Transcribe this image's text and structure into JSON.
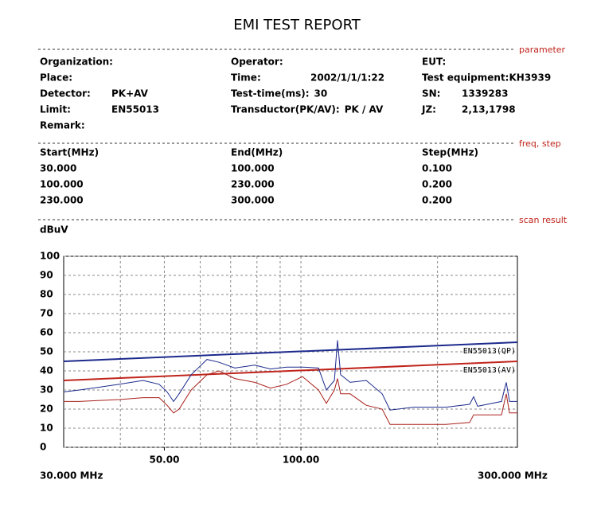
{
  "header": {
    "title": "EMI TEST REPORT"
  },
  "sections": [
    "parameter",
    "freq, step",
    "scan result"
  ],
  "parameters": [
    [
      {
        "label": "Organization:"
      },
      {
        "label": "Operator:"
      },
      {
        "label": "EUT:"
      }
    ],
    [
      {
        "label": "Place:"
      },
      {
        "label": "Time:",
        "value": "2002/1/1/1:22"
      },
      {
        "label": "Test equipment:KH3939"
      }
    ],
    [
      {
        "label": "Detector:",
        "value": "PK+AV"
      },
      {
        "label": "Test-time(ms):",
        "value": "30"
      },
      {
        "label": "SN:",
        "value": "1339283"
      }
    ],
    [
      {
        "label": "Limit:",
        "value": "EN55013"
      },
      {
        "label": "Transductor(PK/AV):",
        "value": "PK  /  AV"
      },
      {
        "label": "JZ:",
        "value": "2,13,1798"
      }
    ],
    [
      {
        "label": "Remark:"
      }
    ]
  ],
  "freq_table": {
    "header": [
      "Start(MHz)",
      "End(MHz)",
      "Step(MHz)"
    ],
    "rows": [
      [
        "30.000",
        "100.000",
        "0.100"
      ],
      [
        "100.000",
        "230.000",
        "0.200"
      ],
      [
        "230.000",
        "300.000",
        "0.200"
      ]
    ]
  },
  "chart_data": {
    "type": "line",
    "y_label": "dBuV",
    "x_start_label": "30.000 MHz",
    "x_end_label": "300.000 MHz",
    "xlim": [
      30,
      300
    ],
    "x_scale": "log",
    "xticks": [
      {
        "value": 50,
        "label": "50.00"
      },
      {
        "value": 100,
        "label": "100.00"
      }
    ],
    "xgrid": [
      40,
      50,
      60,
      70,
      80,
      90,
      100,
      200
    ],
    "ylim": [
      0,
      100
    ],
    "yticks": [
      0,
      10,
      20,
      30,
      40,
      50,
      60,
      70,
      80,
      90,
      100
    ],
    "grid": true,
    "series": [
      {
        "name": "EN55013(QP)",
        "color": "#1c2a8c",
        "x": [
          30,
          300
        ],
        "values": [
          45,
          55
        ]
      },
      {
        "name": "EN55013(AV)",
        "color": "#c0241c",
        "x": [
          30,
          300
        ],
        "values": [
          35,
          45
        ]
      },
      {
        "color": "#1c2a8c",
        "x": [
          30,
          32.5,
          39.8,
          44.9,
          48.7,
          50.7,
          52.4,
          53.9,
          57.3,
          62.1,
          66.0,
          71.5,
          79.1,
          85.7,
          93.0,
          100.8,
          109.3,
          113.8,
          118.5,
          120.4,
          122.3,
          128.4,
          139.3,
          151.0,
          157.2,
          177.4,
          208.6,
          235.4,
          240.2,
          245.2,
          276.7,
          283.5,
          288.2,
          300
        ],
        "values": [
          29,
          30,
          33,
          35,
          33,
          29,
          24,
          28,
          38,
          46,
          44.5,
          41.5,
          43,
          41,
          42,
          42,
          41.5,
          30,
          35,
          56,
          38,
          34,
          35,
          28,
          19.5,
          21,
          21,
          22.5,
          26.5,
          21.5,
          24,
          34,
          24,
          24
        ]
      },
      {
        "color": "#a8201a",
        "x": [
          30,
          32.5,
          39.8,
          44.9,
          48.7,
          50.7,
          52.4,
          53.9,
          57.3,
          62.1,
          66.0,
          71.5,
          79.1,
          85.7,
          93.0,
          100.8,
          109.3,
          113.8,
          118.5,
          120.4,
          122.3,
          128.4,
          139.3,
          151.0,
          157.2,
          177.4,
          208.6,
          235.4,
          240.2,
          245.2,
          276.7,
          283.5,
          288.2,
          300
        ],
        "values": [
          24,
          24,
          25,
          26,
          26,
          22,
          18,
          20,
          30,
          38,
          40,
          36,
          34,
          31,
          33,
          37,
          30,
          23,
          30,
          36,
          28,
          28,
          22,
          20,
          12,
          12,
          12,
          13,
          17,
          17,
          17,
          28,
          18,
          18
        ]
      }
    ]
  }
}
